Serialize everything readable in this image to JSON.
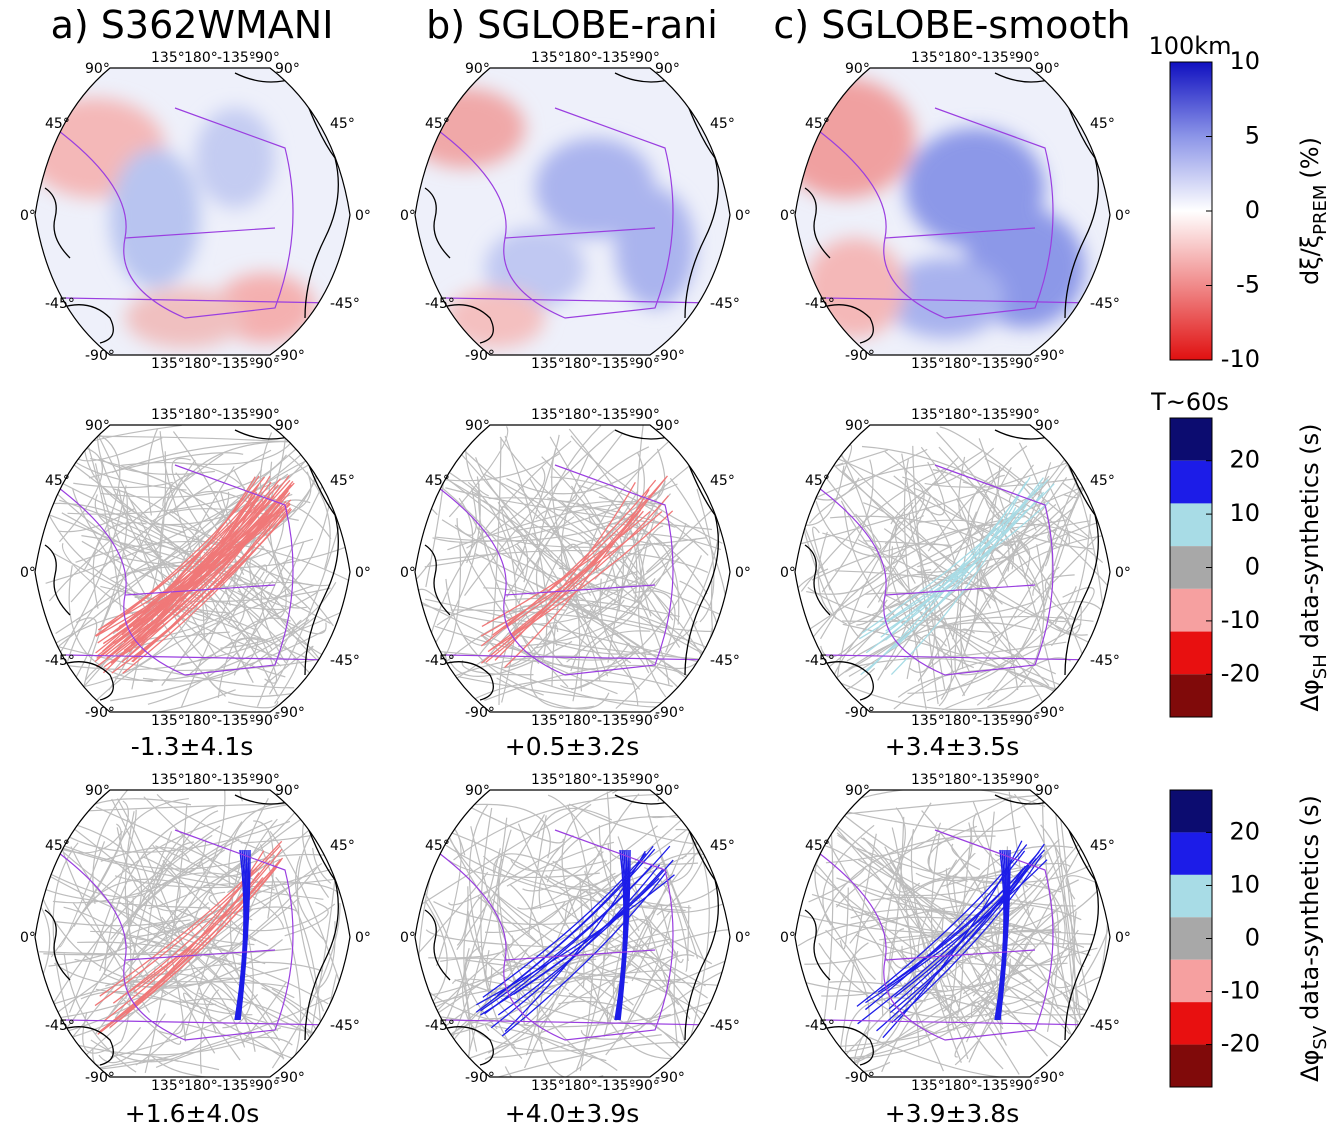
{
  "panels": [
    {
      "title": "a) S362WMANI",
      "sh_misfit": "-1.3±4.1s",
      "sv_misfit": "+1.6±4.0s"
    },
    {
      "title": "b) SGLOBE-rani",
      "sh_misfit": "+0.5±3.2s",
      "sv_misfit": "+4.0±3.9s"
    },
    {
      "title": "c) SGLOBE-smooth",
      "sh_misfit": "+3.4±3.5s",
      "sv_misfit": "+3.9±3.8s"
    }
  ],
  "map_labels": {
    "lat": [
      "90°",
      "45°",
      "0°",
      "-45°",
      "-90°"
    ],
    "lon": [
      "135°",
      "180°",
      "-135°",
      "-90°"
    ]
  },
  "colorbars": [
    {
      "header": "100km",
      "label": "dξ/ξ",
      "label_sub": "PREM",
      "label_unit": "(%)",
      "ticks": [
        10,
        5,
        0,
        -5,
        -10
      ],
      "lim": [
        -10,
        10
      ],
      "colors": [
        "#1010c0",
        "#8c95e8",
        "#ffffff",
        "#f08a8a",
        "#e01010"
      ]
    },
    {
      "header": "T~60s",
      "label": "Δφ",
      "label_sub": "SH",
      "label_unit": "data-synthetics (s)",
      "ticks": [
        20,
        10,
        0,
        -10,
        -20
      ],
      "lim": [
        -28,
        28
      ],
      "colors": [
        "#0c0c70",
        "#1c1ce8",
        "#a8dce6",
        "#a8a8a8",
        "#f6a0a0",
        "#e81010",
        "#800a0a"
      ]
    },
    {
      "header": null,
      "label": "Δφ",
      "label_sub": "SV",
      "label_unit": "data-synthetics (s)",
      "ticks": [
        20,
        10,
        0,
        -10,
        -20
      ],
      "lim": [
        -28,
        28
      ],
      "colors": [
        "#0c0c70",
        "#1c1ce8",
        "#a8dce6",
        "#a8a8a8",
        "#f6a0a0",
        "#e81010",
        "#800a0a"
      ]
    }
  ]
}
